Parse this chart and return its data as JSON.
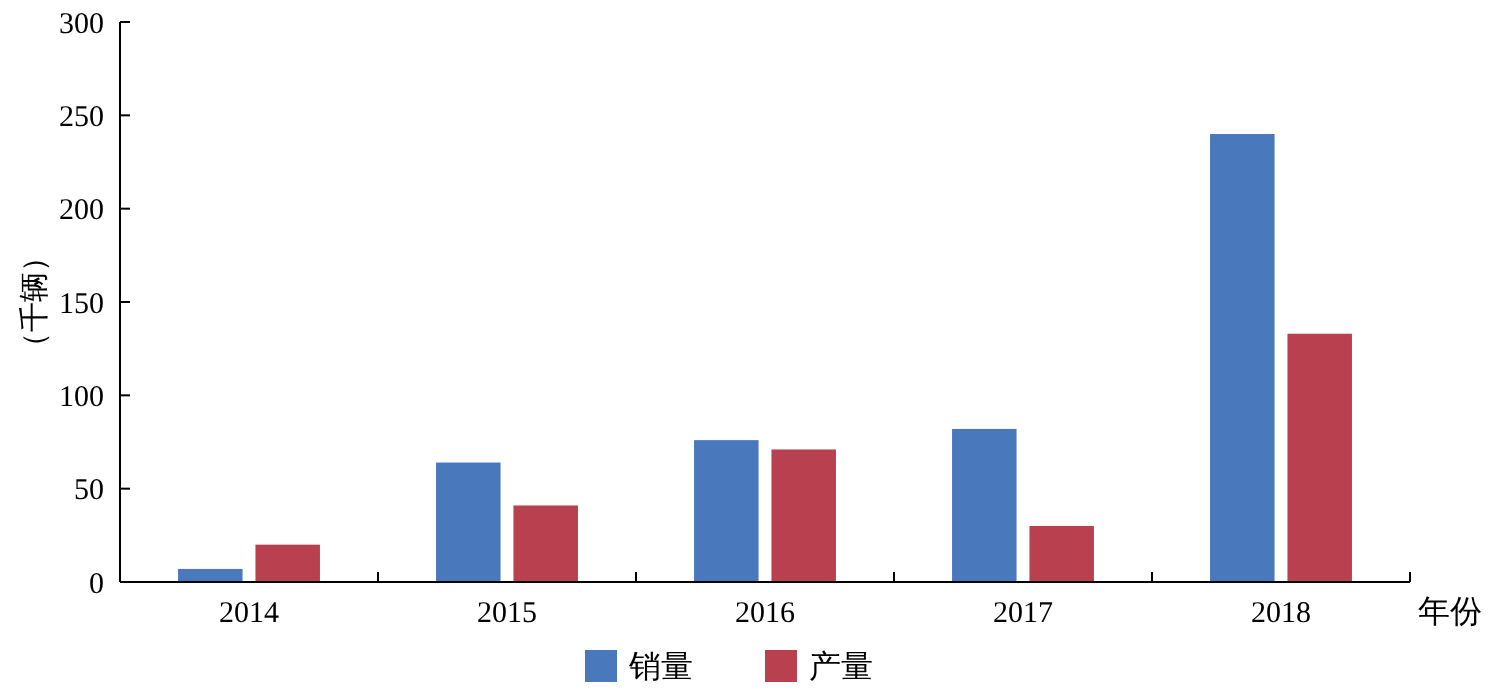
{
  "chart_data": {
    "type": "bar",
    "categories": [
      "2014",
      "2015",
      "2016",
      "2017",
      "2018"
    ],
    "series": [
      {
        "name": "销量",
        "color": "#4a78bd",
        "values": [
          7,
          64,
          76,
          82,
          240
        ]
      },
      {
        "name": "产量",
        "color": "#b8404f",
        "values": [
          20,
          41,
          71,
          30,
          133
        ]
      }
    ],
    "ylabel": "（千辆）",
    "xlabel": "年份",
    "ylim": [
      0,
      300
    ],
    "yticks": [
      0,
      50,
      100,
      150,
      200,
      250,
      300
    ],
    "grid": false,
    "legend": "bottom"
  }
}
